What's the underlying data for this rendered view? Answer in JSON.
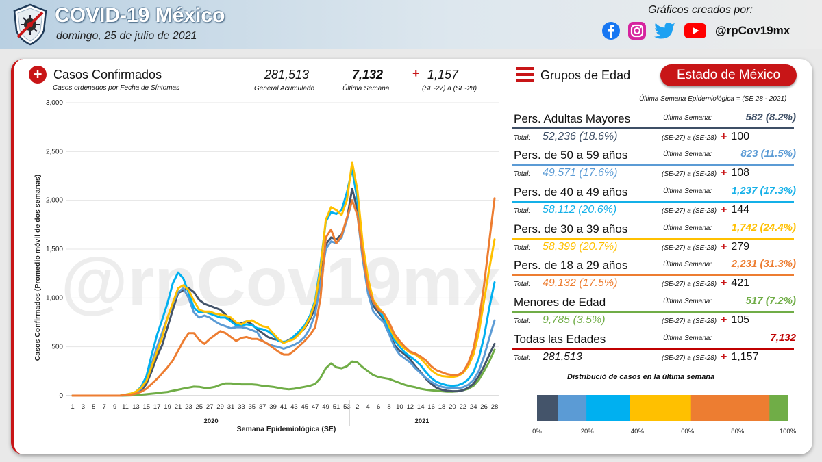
{
  "header": {
    "title": "COVID-19 México",
    "date": "domingo, 25 de julio de 2021",
    "credit": "Gráficos creados por:",
    "handle": "@rpCov19mx"
  },
  "summary": {
    "title": "Casos Confirmados",
    "subtitle": "Casos ordenados por Fecha de Síntomas",
    "total_value": "281,513",
    "total_label": "General Acumulado",
    "week_value": "7,132",
    "week_label": "Última Semana",
    "inc_sign": "+",
    "inc_value": "1,157",
    "inc_label": "(SE-27) a (SE-28)"
  },
  "groups_panel": {
    "title": "Grupos de Edad",
    "state": "Estado de México",
    "note": "Última Semana Epidemiológica = (SE 28 - 2021)",
    "ult_label": "Última Semana:",
    "tot_label": "Total:",
    "range_label": "(SE-27) a (SE-28)",
    "plus": "+",
    "groups": [
      {
        "name": "Pers. Adultas Mayores",
        "week": "582 (8.2%)",
        "total": "52,236 (18.6%)",
        "inc": "100",
        "color": "#3e4f66"
      },
      {
        "name": "Pers. de 50 a 59 años",
        "week": "823 (11.5%)",
        "total": "49,571 (17.6%)",
        "inc": "108",
        "color": "#5b9bd5"
      },
      {
        "name": "Pers. de 40 a 49 años",
        "week": "1,237 (17.3%)",
        "total": "58,112 (20.6%)",
        "inc": "144",
        "color": "#14b0e8"
      },
      {
        "name": "Pers. de 30 a 39 años",
        "week": "1,742 (24.4%)",
        "total": "58,399 (20.7%)",
        "inc": "279",
        "color": "#ffc000"
      },
      {
        "name": "Pers. de 18 a 29 años",
        "week": "2,231 (31.3%)",
        "total": "49,132 (17.5%)",
        "inc": "421",
        "color": "#ed7d31"
      },
      {
        "name": "Menores de Edad",
        "week": "517 (7.2%)",
        "total": "9,785 (3.5%)",
        "inc": "105",
        "color": "#70ad47"
      },
      {
        "name": "Todas las Edades",
        "week": "7,132",
        "total": "281,513",
        "inc": "1,157",
        "color": "#c00000"
      }
    ]
  },
  "distribution": {
    "title": "Distribució de casos en la última semana",
    "ticks": [
      "0%",
      "20%",
      "40%",
      "60%",
      "80%",
      "100%"
    ],
    "segments": [
      {
        "label": "Pers. Adultas Mayores",
        "share": 8.2,
        "color": "#44546a"
      },
      {
        "label": "Pers. de 50 a 59 años",
        "share": 11.5,
        "color": "#5b9bd5"
      },
      {
        "label": "Pers. de 40 a 49 años",
        "share": 17.3,
        "color": "#00b0f0"
      },
      {
        "label": "Pers. de 30 a 39 años",
        "share": 24.4,
        "color": "#ffc000"
      },
      {
        "label": "Pers. de 18 a 29 años",
        "share": 31.3,
        "color": "#ed7d31"
      },
      {
        "label": "Menores de Edad",
        "share": 7.2,
        "color": "#70ad47"
      }
    ]
  },
  "chart_data": {
    "type": "line",
    "watermark": "@rpCov19mx",
    "xlabel": "Semana Epidemiológica (SE)",
    "ylabel": "Casos Confirmados (Promedio móvil de dos semanas)",
    "ylim": [
      0,
      3000
    ],
    "yticks": [
      "0",
      "500",
      "1,000",
      "1,500",
      "2,000",
      "2,500",
      "3,000"
    ],
    "x_ticks": [
      "1",
      "3",
      "5",
      "7",
      "9",
      "11",
      "13",
      "15",
      "17",
      "19",
      "21",
      "23",
      "25",
      "27",
      "29",
      "31",
      "33",
      "35",
      "37",
      "39",
      "41",
      "43",
      "45",
      "47",
      "49",
      "51",
      "53",
      "2",
      "4",
      "6",
      "8",
      "10",
      "12",
      "14",
      "16",
      "18",
      "20",
      "22",
      "24",
      "26",
      "28"
    ],
    "year_labels": [
      "2020",
      "2021"
    ],
    "weeks_2020": 53,
    "weeks_2021": 28,
    "series": [
      {
        "name": "Pers. Adultas Mayores",
        "color": "#44546a",
        "values": [
          0,
          0,
          0,
          0,
          0,
          0,
          0,
          0,
          0,
          0,
          5,
          12,
          25,
          50,
          120,
          250,
          400,
          520,
          700,
          880,
          1050,
          1080,
          1100,
          1060,
          980,
          940,
          920,
          900,
          880,
          830,
          770,
          730,
          740,
          760,
          730,
          680,
          640,
          600,
          580,
          570,
          540,
          570,
          600,
          640,
          690,
          780,
          900,
          1180,
          1550,
          1620,
          1600,
          1650,
          1800,
          2120,
          1900,
          1450,
          1100,
          920,
          850,
          780,
          650,
          520,
          460,
          420,
          370,
          300,
          240,
          170,
          120,
          80,
          60,
          50,
          45,
          45,
          55,
          80,
          120,
          200,
          300,
          420,
          530
        ]
      },
      {
        "name": "Pers. de 50 a 59 años",
        "color": "#5b9bd5",
        "values": [
          0,
          0,
          0,
          0,
          0,
          0,
          0,
          0,
          0,
          0,
          5,
          15,
          30,
          70,
          160,
          330,
          500,
          650,
          800,
          940,
          1060,
          1100,
          1000,
          850,
          800,
          820,
          800,
          760,
          730,
          710,
          690,
          700,
          700,
          690,
          670,
          650,
          560,
          530,
          510,
          500,
          480,
          500,
          520,
          550,
          600,
          690,
          840,
          1150,
          1500,
          1580,
          1560,
          1620,
          1800,
          2000,
          1850,
          1400,
          1050,
          860,
          800,
          750,
          630,
          500,
          420,
          380,
          340,
          280,
          230,
          180,
          140,
          110,
          90,
          80,
          75,
          75,
          85,
          110,
          160,
          250,
          400,
          590,
          770
        ]
      },
      {
        "name": "Pers. de 40 a 49 años",
        "color": "#00b0f0",
        "values": [
          0,
          0,
          0,
          0,
          0,
          0,
          0,
          0,
          0,
          0,
          10,
          20,
          40,
          90,
          200,
          420,
          620,
          780,
          950,
          1150,
          1260,
          1200,
          1050,
          900,
          850,
          860,
          840,
          820,
          800,
          800,
          760,
          720,
          720,
          730,
          720,
          690,
          680,
          660,
          620,
          560,
          550,
          560,
          610,
          660,
          720,
          820,
          980,
          1340,
          1780,
          1880,
          1860,
          1900,
          2080,
          2320,
          2000,
          1500,
          1150,
          950,
          880,
          800,
          680,
          570,
          500,
          440,
          400,
          360,
          310,
          240,
          180,
          140,
          120,
          105,
          100,
          105,
          125,
          165,
          240,
          380,
          600,
          900,
          1160
        ]
      },
      {
        "name": "Pers. de 30 a 39 años",
        "color": "#ffc000",
        "values": [
          0,
          0,
          0,
          0,
          0,
          0,
          0,
          0,
          0,
          0,
          10,
          20,
          40,
          80,
          150,
          300,
          450,
          600,
          800,
          950,
          1100,
          1130,
          1080,
          970,
          880,
          860,
          860,
          840,
          830,
          820,
          800,
          750,
          730,
          760,
          770,
          740,
          710,
          700,
          640,
          580,
          540,
          560,
          580,
          630,
          700,
          800,
          960,
          1300,
          1800,
          1930,
          1900,
          1850,
          2000,
          2390,
          2100,
          1560,
          1200,
          980,
          900,
          840,
          710,
          600,
          530,
          480,
          440,
          420,
          380,
          320,
          260,
          220,
          200,
          195,
          190,
          200,
          230,
          300,
          420,
          640,
          970,
          1300,
          1600
        ]
      },
      {
        "name": "Pers. de 18 a 29 años",
        "color": "#ed7d31",
        "values": [
          0,
          0,
          0,
          0,
          0,
          0,
          0,
          0,
          0,
          0,
          5,
          10,
          20,
          40,
          70,
          120,
          170,
          230,
          290,
          360,
          460,
          560,
          640,
          640,
          570,
          530,
          580,
          620,
          660,
          640,
          600,
          560,
          590,
          600,
          580,
          580,
          560,
          530,
          490,
          450,
          420,
          420,
          460,
          510,
          560,
          620,
          700,
          1000,
          1620,
          1700,
          1560,
          1640,
          1820,
          2000,
          1850,
          1450,
          1110,
          960,
          880,
          840,
          750,
          630,
          560,
          500,
          450,
          430,
          400,
          360,
          300,
          260,
          240,
          220,
          210,
          210,
          240,
          330,
          480,
          750,
          1130,
          1580,
          2020
        ]
      },
      {
        "name": "Menores de Edad",
        "color": "#70ad47",
        "values": [
          0,
          0,
          0,
          0,
          0,
          0,
          0,
          0,
          0,
          0,
          1,
          3,
          6,
          10,
          15,
          20,
          25,
          32,
          38,
          50,
          60,
          72,
          82,
          92,
          90,
          80,
          80,
          90,
          110,
          125,
          125,
          120,
          115,
          115,
          115,
          110,
          100,
          95,
          90,
          80,
          70,
          65,
          70,
          80,
          90,
          100,
          120,
          180,
          280,
          330,
          290,
          280,
          300,
          350,
          340,
          290,
          250,
          210,
          190,
          180,
          170,
          150,
          130,
          110,
          95,
          85,
          70,
          60,
          55,
          50,
          45,
          40,
          40,
          45,
          55,
          70,
          100,
          160,
          250,
          350,
          470
        ]
      }
    ]
  }
}
